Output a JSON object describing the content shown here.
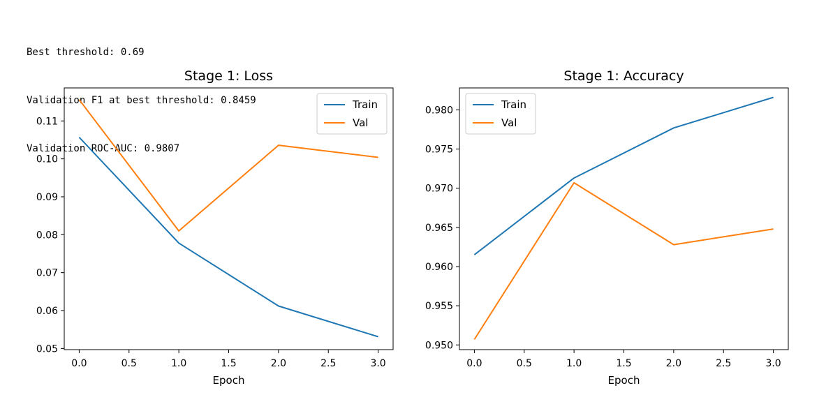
{
  "output": {
    "lines": [
      "Best threshold: 0.69",
      "Validation F1 at best threshold: 0.8459",
      "Validation ROC-AUC: 0.9807"
    ]
  },
  "colors": {
    "train": "#1f77b4",
    "val": "#ff7f0e",
    "axes": "#000000"
  },
  "chart_data": [
    {
      "type": "line",
      "title": "Stage 1: Loss",
      "xlabel": "Epoch",
      "ylabel": "",
      "x": [
        0,
        1,
        2,
        3
      ],
      "xticks": [
        "0.0",
        "0.5",
        "1.0",
        "1.5",
        "2.0",
        "2.5",
        "3.0"
      ],
      "yticks": [
        "0.05",
        "0.06",
        "0.07",
        "0.08",
        "0.09",
        "0.10",
        "0.11"
      ],
      "xlim": [
        -0.15,
        3.15
      ],
      "ylim": [
        0.0497,
        0.1187
      ],
      "legend": "upper right",
      "grid": false,
      "series": [
        {
          "name": "Train",
          "values": [
            0.1057,
            0.0778,
            0.0612,
            0.0531
          ]
        },
        {
          "name": "Val",
          "values": [
            0.1156,
            0.081,
            0.1036,
            0.1004
          ]
        }
      ]
    },
    {
      "type": "line",
      "title": "Stage 1: Accuracy",
      "xlabel": "Epoch",
      "ylabel": "",
      "x": [
        0,
        1,
        2,
        3
      ],
      "xticks": [
        "0.0",
        "0.5",
        "1.0",
        "1.5",
        "2.0",
        "2.5",
        "3.0"
      ],
      "yticks": [
        "0.950",
        "0.955",
        "0.960",
        "0.965",
        "0.970",
        "0.975",
        "0.980"
      ],
      "xlim": [
        -0.15,
        3.15
      ],
      "ylim": [
        0.9494,
        0.9828
      ],
      "legend": "upper left",
      "grid": false,
      "series": [
        {
          "name": "Train",
          "values": [
            0.9615,
            0.9713,
            0.9777,
            0.9816
          ]
        },
        {
          "name": "Val",
          "values": [
            0.9507,
            0.9707,
            0.9628,
            0.9648
          ]
        }
      ]
    }
  ]
}
